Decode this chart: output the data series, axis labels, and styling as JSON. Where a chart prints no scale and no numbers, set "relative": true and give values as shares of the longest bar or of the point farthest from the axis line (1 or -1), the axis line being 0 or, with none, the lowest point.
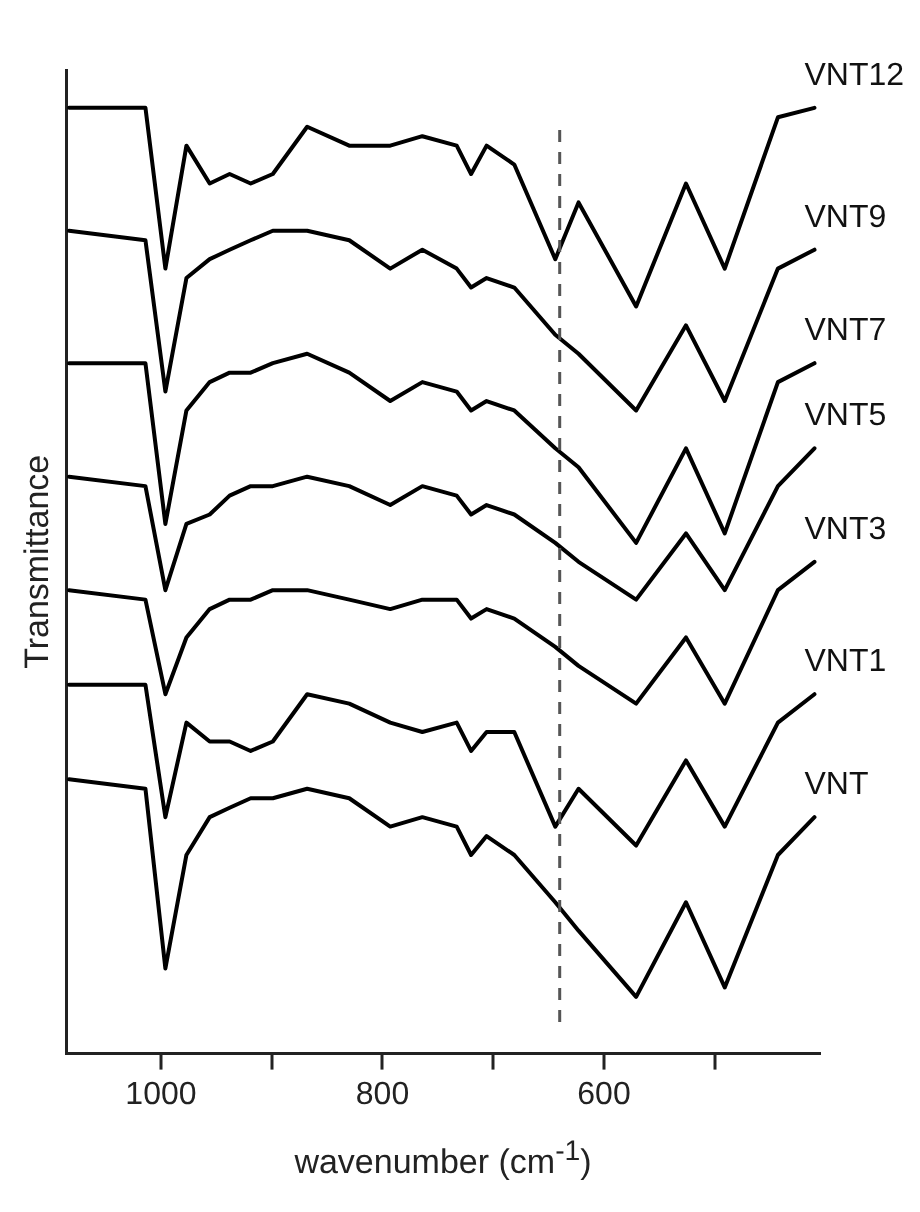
{
  "chart_data": {
    "type": "line",
    "xlabel": "wavenumber (cm$^{-1}$)",
    "ylabel": "Transmittance",
    "relative": true,
    "grid": false,
    "legend": false,
    "marker": "none",
    "line_style": "solid",
    "x": [
      1083,
      1014,
      996,
      977,
      956,
      938,
      919,
      899,
      868,
      830,
      793,
      764,
      733,
      720,
      706,
      681,
      644,
      623,
      571,
      526,
      491,
      443,
      410
    ],
    "xlim": [
      1085,
      405
    ],
    "xticks": [
      1000,
      {
        "value": 900,
        "label": null
      },
      800,
      {
        "value": 700,
        "label": null
      },
      600,
      {
        "value": 500,
        "label": null
      }
    ],
    "ref_lines": [
      {
        "axis": "x",
        "value": 640,
        "label": null,
        "color": "#555555",
        "line_style": "dashed"
      }
    ],
    "series": [
      {
        "name": "VNT12",
        "color": "#000000",
        "values": [
          1.0,
          1.0,
          0.83,
          0.96,
          0.92,
          0.93,
          0.92,
          0.93,
          0.98,
          0.96,
          0.96,
          0.97,
          0.96,
          0.93,
          0.96,
          0.94,
          0.84,
          0.9,
          0.79,
          0.92,
          0.83,
          0.99,
          1.0
        ]
      },
      {
        "name": "VNT9",
        "color": "#000000",
        "values": [
          0.87,
          0.86,
          0.7,
          0.82,
          0.84,
          0.85,
          0.86,
          0.87,
          0.87,
          0.86,
          0.83,
          0.85,
          0.83,
          0.81,
          0.82,
          0.81,
          0.76,
          0.74,
          0.68,
          0.77,
          0.69,
          0.83,
          0.85
        ]
      },
      {
        "name": "VNT7",
        "color": "#000000",
        "values": [
          0.73,
          0.73,
          0.56,
          0.68,
          0.71,
          0.72,
          0.72,
          0.73,
          0.74,
          0.72,
          0.69,
          0.71,
          0.7,
          0.68,
          0.69,
          0.68,
          0.64,
          0.62,
          0.54,
          0.64,
          0.55,
          0.71,
          0.73
        ]
      },
      {
        "name": "VNT5",
        "color": "#000000",
        "values": [
          0.61,
          0.6,
          0.49,
          0.56,
          0.57,
          0.59,
          0.6,
          0.6,
          0.61,
          0.6,
          0.58,
          0.6,
          0.59,
          0.57,
          0.58,
          0.57,
          0.54,
          0.52,
          0.48,
          0.55,
          0.49,
          0.6,
          0.64
        ]
      },
      {
        "name": "VNT3",
        "color": "#000000",
        "values": [
          0.49,
          0.48,
          0.38,
          0.44,
          0.47,
          0.48,
          0.48,
          0.49,
          0.49,
          0.48,
          0.47,
          0.48,
          0.48,
          0.46,
          0.47,
          0.46,
          0.43,
          0.41,
          0.37,
          0.44,
          0.37,
          0.49,
          0.52
        ]
      },
      {
        "name": "VNT1",
        "color": "#000000",
        "values": [
          0.39,
          0.39,
          0.25,
          0.35,
          0.33,
          0.33,
          0.32,
          0.33,
          0.38,
          0.37,
          0.35,
          0.34,
          0.35,
          0.32,
          0.34,
          0.34,
          0.24,
          0.28,
          0.22,
          0.31,
          0.24,
          0.35,
          0.38
        ]
      },
      {
        "name": "VNT",
        "color": "#000000",
        "values": [
          0.29,
          0.28,
          0.09,
          0.21,
          0.25,
          0.26,
          0.27,
          0.27,
          0.28,
          0.27,
          0.24,
          0.25,
          0.24,
          0.21,
          0.23,
          0.21,
          0.16,
          0.13,
          0.06,
          0.16,
          0.07,
          0.21,
          0.25
        ]
      }
    ]
  }
}
